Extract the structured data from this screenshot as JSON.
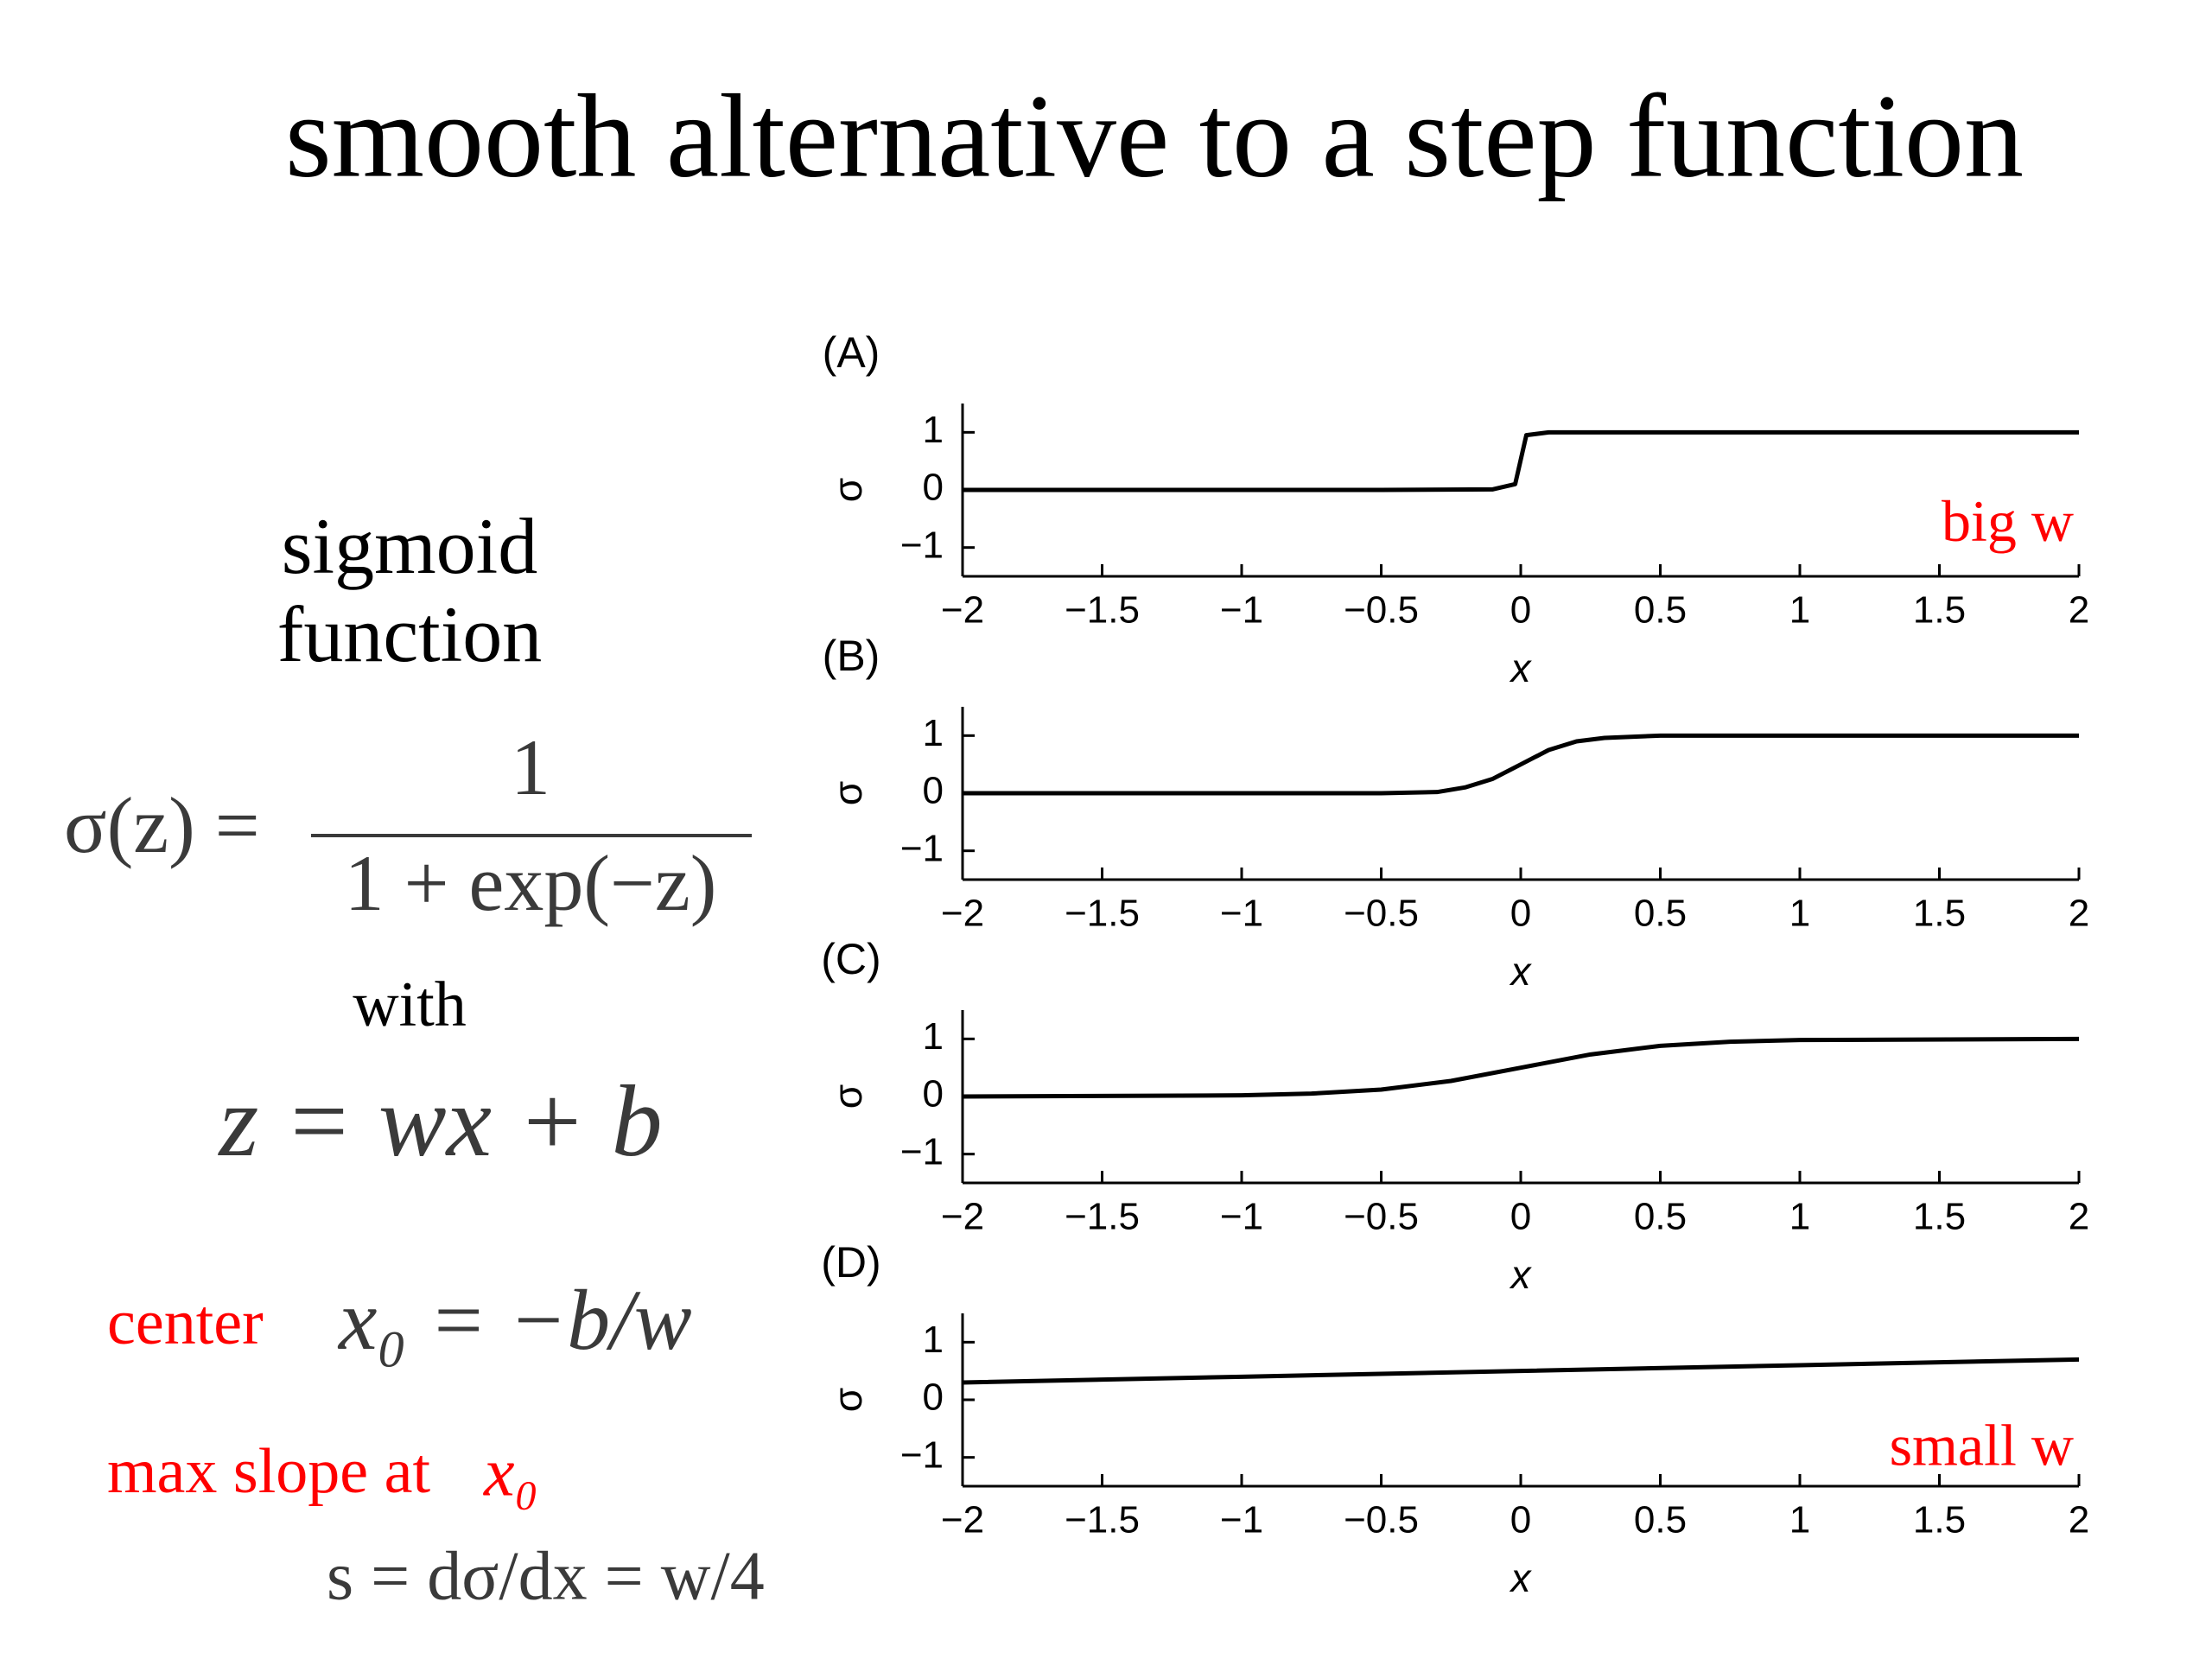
{
  "slide": {
    "title": "smooth alternative to a step function",
    "sigmoid": [
      "sigmoid",
      "function"
    ],
    "formula_lhs": "σ(z) =",
    "formula_num": "1",
    "formula_den": "1 + exp(−z)",
    "with": "with",
    "z_def": "z = wx + b",
    "center_label": "center",
    "center_formula": "x₀ = −b/w",
    "slope_label": "max slope at",
    "slope_var": "x₀",
    "slope_formula": "s = dσ/dx = w/4"
  },
  "chart_data": [
    {
      "type": "line",
      "label": "(A)",
      "ylabel": "σ",
      "xlabel": "x",
      "annotation": "big w",
      "color": "#000000",
      "x": [
        -2,
        -0.5,
        -0.1,
        -0.02,
        0.02,
        0.1,
        0.5,
        2
      ],
      "values": [
        0,
        0,
        0.01,
        0.1,
        0.95,
        1,
        1,
        1
      ],
      "xlim": [
        -2,
        2
      ],
      "ylim": [
        -1.5,
        1.5
      ],
      "xticks": [
        {
          "value": -2,
          "label": "−2"
        },
        {
          "value": -1.5,
          "label": "−1.5"
        },
        {
          "value": -1,
          "label": "−1"
        },
        {
          "value": -0.5,
          "label": "−0.5"
        },
        0,
        0.5,
        1,
        1.5,
        2
      ],
      "yticks": [
        1,
        0,
        {
          "value": -1,
          "label": "−1"
        }
      ]
    },
    {
      "type": "line",
      "label": "(B)",
      "ylabel": "σ",
      "xlabel": "x",
      "color": "#000000",
      "x": [
        -2,
        -1,
        -0.5,
        -0.3,
        -0.2,
        -0.1,
        0,
        0.1,
        0.2,
        0.3,
        0.5,
        1,
        2
      ],
      "values": [
        0,
        0,
        0,
        0.02,
        0.1,
        0.25,
        0.5,
        0.75,
        0.9,
        0.96,
        1,
        1,
        1
      ],
      "xlim": [
        -2,
        2
      ],
      "ylim": [
        -1.5,
        1.5
      ],
      "xticks": [
        {
          "value": -2,
          "label": "−2"
        },
        {
          "value": -1.5,
          "label": "−1.5"
        },
        {
          "value": -1,
          "label": "−1"
        },
        {
          "value": -0.5,
          "label": "−0.5"
        },
        0,
        0.5,
        1,
        1.5,
        2
      ],
      "yticks": [
        1,
        0,
        {
          "value": -1,
          "label": "−1"
        }
      ]
    },
    {
      "type": "line",
      "label": "(C)",
      "ylabel": "σ",
      "xlabel": "x",
      "color": "#000000",
      "x": [
        -2,
        -1,
        -0.75,
        -0.5,
        -0.25,
        0,
        0.25,
        0.5,
        0.75,
        1,
        2
      ],
      "values": [
        0,
        0.02,
        0.05,
        0.12,
        0.27,
        0.5,
        0.73,
        0.88,
        0.95,
        0.98,
        1
      ],
      "xlim": [
        -2,
        2
      ],
      "ylim": [
        -1.5,
        1.5
      ],
      "xticks": [
        {
          "value": -2,
          "label": "−2"
        },
        {
          "value": -1.5,
          "label": "−1.5"
        },
        {
          "value": -1,
          "label": "−1"
        },
        {
          "value": -0.5,
          "label": "−0.5"
        },
        0,
        0.5,
        1,
        1.5,
        2
      ],
      "yticks": [
        1,
        0,
        {
          "value": -1,
          "label": "−1"
        }
      ]
    },
    {
      "type": "line",
      "label": "(D)",
      "ylabel": "σ",
      "xlabel": "x",
      "annotation": "small w",
      "color": "#000000",
      "x": [
        -2,
        -1,
        0,
        1,
        2
      ],
      "values": [
        0.3,
        0.4,
        0.5,
        0.6,
        0.7
      ],
      "xlim": [
        -2,
        2
      ],
      "ylim": [
        -1.5,
        1.5
      ],
      "xticks": [
        {
          "value": -2,
          "label": "−2"
        },
        {
          "value": -1.5,
          "label": "−1.5"
        },
        {
          "value": -1,
          "label": "−1"
        },
        {
          "value": -0.5,
          "label": "−0.5"
        },
        0,
        0.5,
        1,
        1.5,
        2
      ],
      "yticks": [
        1,
        0,
        {
          "value": -1,
          "label": "−1"
        }
      ]
    }
  ]
}
